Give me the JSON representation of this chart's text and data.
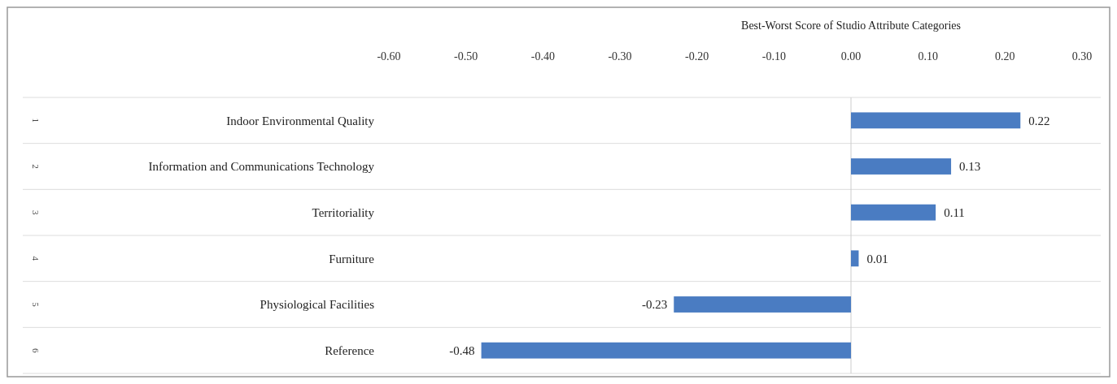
{
  "chart_data": {
    "type": "bar",
    "orientation": "horizontal",
    "title": "Best-Worst Score of Studio Attribute Categories",
    "categories": [
      "Indoor Environmental Quality",
      "Information and Communications Technology",
      "Territoriality",
      "Furniture",
      "Physiological Facilities",
      "Reference"
    ],
    "values": [
      0.22,
      0.13,
      0.11,
      0.01,
      -0.23,
      -0.48
    ],
    "color": "#4a7cc2",
    "xlim": [
      -0.6,
      0.3
    ],
    "xticks": [
      {
        "value": -0.6,
        "label": "-0.60"
      },
      {
        "value": -0.5,
        "label": "-0.50"
      },
      {
        "value": -0.4,
        "label": "-0.40"
      },
      {
        "value": -0.3,
        "label": "-0.30"
      },
      {
        "value": -0.2,
        "label": "-0.20"
      },
      {
        "value": -0.1,
        "label": "-0.10"
      },
      {
        "value": 0,
        "label": "0.00"
      },
      {
        "value": 0.1,
        "label": "0.10"
      },
      {
        "value": 0.2,
        "label": "0.20"
      },
      {
        "value": 0.3,
        "label": "0.30"
      }
    ],
    "data_labels": true,
    "annotations": [
      "1",
      "2",
      "3",
      "4",
      "5",
      "6"
    ]
  }
}
